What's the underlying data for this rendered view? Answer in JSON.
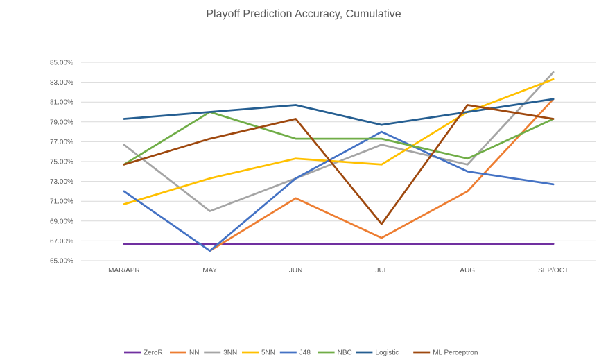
{
  "chart_data": {
    "type": "line",
    "title": "Playoff Prediction Accuracy, Cumulative",
    "categories": [
      "MAR/APR",
      "MAY",
      "JUN",
      "JUL",
      "AUG",
      "SEP/OCT"
    ],
    "ylim": [
      65,
      85
    ],
    "ytick_step": 2,
    "ytick_labels": [
      "65.00%",
      "67.00%",
      "69.00%",
      "71.00%",
      "73.00%",
      "75.00%",
      "77.00%",
      "79.00%",
      "81.00%",
      "83.00%",
      "85.00%"
    ],
    "grid": true,
    "legend_position": "bottom",
    "series": [
      {
        "name": "ZeroR",
        "color": "#7030a0",
        "values": [
          66.7,
          66.7,
          66.7,
          66.7,
          66.7,
          66.7
        ]
      },
      {
        "name": "NN",
        "color": "#ed7d31",
        "values": [
          null,
          66.0,
          71.3,
          67.3,
          72.0,
          81.3
        ]
      },
      {
        "name": "3NN",
        "color": "#a5a5a5",
        "values": [
          76.7,
          70.0,
          73.3,
          76.7,
          74.7,
          84.0
        ]
      },
      {
        "name": "5NN",
        "color": "#ffc000",
        "values": [
          70.7,
          73.3,
          75.3,
          74.7,
          80.0,
          83.3
        ]
      },
      {
        "name": "J48",
        "color": "#4472c4",
        "values": [
          72.0,
          66.0,
          73.3,
          78.0,
          74.0,
          72.7
        ]
      },
      {
        "name": "NBC",
        "color": "#70ad47",
        "values": [
          74.7,
          80.0,
          77.3,
          77.3,
          75.3,
          79.3
        ]
      },
      {
        "name": "Logistic",
        "color": "#255e91",
        "values": [
          79.3,
          80.0,
          80.7,
          78.7,
          80.0,
          81.3
        ]
      },
      {
        "name": "ML Perceptron",
        "color": "#9e480e",
        "values": [
          74.7,
          77.3,
          79.3,
          68.7,
          80.7,
          79.3
        ]
      }
    ]
  }
}
